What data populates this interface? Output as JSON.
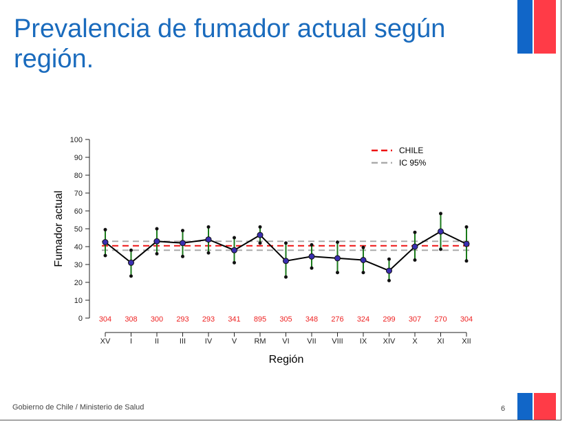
{
  "slide": {
    "title": "Prevalencia de fumador actual según región.",
    "footer": "Gobierno de Chile / Ministerio de Salud",
    "page_number": "6"
  },
  "colors": {
    "title": "#1a6bbd",
    "flag_blue": "#1166c8",
    "flag_red": "#ff3b47",
    "mean_line": "#ee1111",
    "ci_line": "#aaaaaa",
    "error_bar": "#1a7a1a",
    "point_fill": "#3a2fb0",
    "n_text": "#ee2222"
  },
  "chart_data": {
    "type": "line",
    "title": "",
    "xlabel": "Región",
    "ylabel": "Fumador actual",
    "ylim": [
      0,
      100
    ],
    "yticks": [
      0,
      10,
      20,
      30,
      40,
      50,
      60,
      70,
      80,
      90,
      100
    ],
    "categories": [
      "XV",
      "I",
      "II",
      "III",
      "IV",
      "V",
      "RM",
      "VI",
      "VII",
      "VIII",
      "IX",
      "XIV",
      "X",
      "XI",
      "XII"
    ],
    "values": [
      42.5,
      31,
      43,
      42,
      44,
      38,
      46.5,
      32,
      34.5,
      33.5,
      32.5,
      26.5,
      40,
      48.5,
      41.5
    ],
    "ci_lower": [
      35,
      23.5,
      36,
      34.5,
      36.5,
      31,
      42,
      23,
      28,
      25.5,
      25.5,
      21,
      32.5,
      38.5,
      32
    ],
    "ci_upper": [
      49.5,
      38,
      50,
      49,
      51,
      45,
      51,
      42,
      41,
      42.5,
      39.5,
      33,
      48,
      58.5,
      51
    ],
    "n": [
      "304",
      "308",
      "300",
      "293",
      "293",
      "341",
      "895",
      "305",
      "348",
      "276",
      "324",
      "299",
      "307",
      "270",
      "304"
    ],
    "reference_lines": {
      "chile": 40.5,
      "ci_low": 38,
      "ci_high": 43
    },
    "legend": {
      "position": "top-right",
      "entries": [
        "CHILE",
        "IC 95%"
      ]
    },
    "grid": false
  }
}
